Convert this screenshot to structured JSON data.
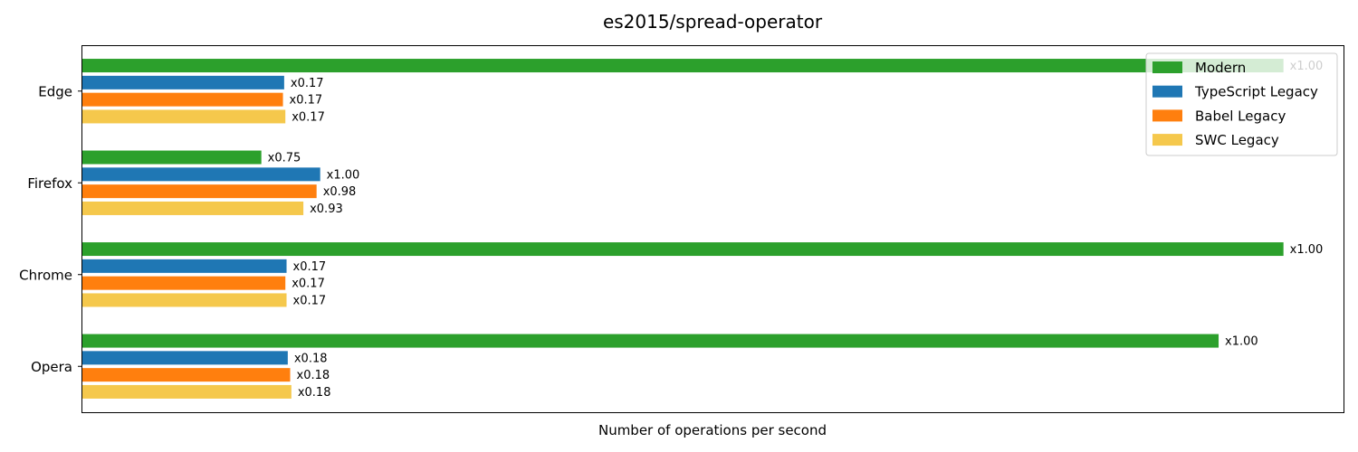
{
  "chart_data": {
    "type": "bar",
    "orientation": "horizontal",
    "title": "es2015/spread-operator",
    "xlabel": "Number of operations per second",
    "ylabel": "",
    "categories": [
      "Edge",
      "Firefox",
      "Chrome",
      "Opera"
    ],
    "series": [
      {
        "name": "Modern",
        "color": "#2ca02c",
        "values": [
          1.0,
          0.149,
          1.0,
          0.946
        ],
        "labels": [
          "x1.00",
          "x0.75",
          "x1.00",
          "x1.00"
        ]
      },
      {
        "name": "TypeScript Legacy",
        "color": "#1f77b4",
        "values": [
          0.168,
          0.198,
          0.17,
          0.171
        ],
        "labels": [
          "x0.17",
          "x1.00",
          "x0.17",
          "x0.18"
        ]
      },
      {
        "name": "Babel Legacy",
        "color": "#ff7f0e",
        "values": [
          0.167,
          0.195,
          0.169,
          0.173
        ],
        "labels": [
          "x0.17",
          "x0.98",
          "x0.17",
          "x0.18"
        ]
      },
      {
        "name": "SWC Legacy",
        "color": "#f5c84c",
        "values": [
          0.169,
          0.184,
          0.17,
          0.174
        ],
        "labels": [
          "x0.17",
          "x0.93",
          "x0.17",
          "x0.18"
        ]
      }
    ],
    "xlim": [
      0,
      1.05
    ],
    "xticks": "none",
    "grid": false,
    "legend": "top-right"
  }
}
